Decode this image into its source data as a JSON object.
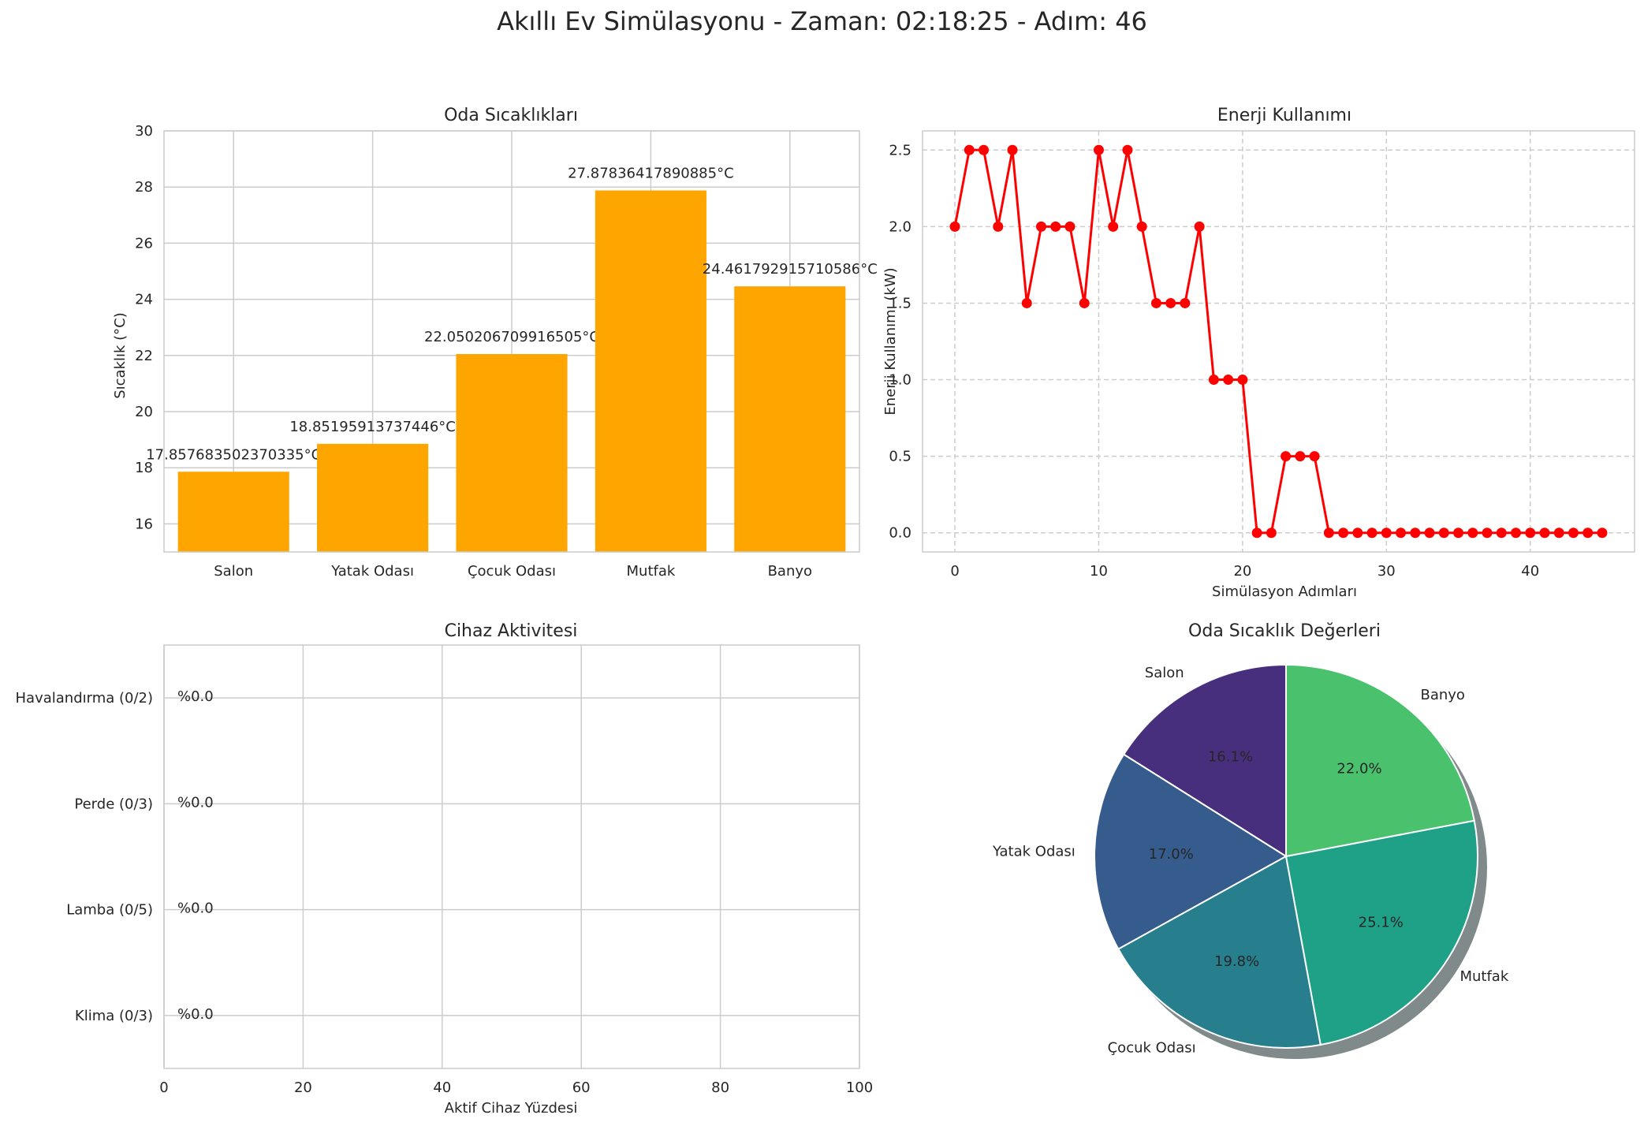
{
  "figure": {
    "title": "Akıllı Ev Simülasyonu - Zaman: 02:18:25 - Adım: 46"
  },
  "chart_data": [
    {
      "type": "bar",
      "title": "Oda Sıcaklıkları",
      "xlabel": "",
      "ylabel": "Sıcaklık (°C)",
      "ylim": [
        15,
        30
      ],
      "yticks": [
        "16",
        "18",
        "20",
        "22",
        "24",
        "26",
        "28",
        "30"
      ],
      "grid": true,
      "bar_color": "#ffa500",
      "categories": [
        "Salon",
        "Yatak Odası",
        "Çocuk Odası",
        "Mutfak",
        "Banyo"
      ],
      "values": [
        17.857683502370335,
        18.85195913737446,
        22.050206709916505,
        27.87836417890885,
        24.461792915710586
      ],
      "data_labels": [
        "17.857683502370335°C",
        "18.85195913737446°C",
        "22.050206709916505°C",
        "27.87836417890885°C",
        "24.461792915710586°C"
      ]
    },
    {
      "type": "line",
      "title": "Enerji Kullanımı",
      "xlabel": "Simülasyon Adımları",
      "ylabel": "Enerji Kullanımı (kW)",
      "xlim": [
        -2.25,
        47.25
      ],
      "ylim": [
        -0.125,
        2.625
      ],
      "xticks": [
        "0",
        "10",
        "20",
        "30",
        "40"
      ],
      "yticks": [
        "0.0",
        "0.5",
        "1.0",
        "1.5",
        "2.0",
        "2.5"
      ],
      "grid": "dashed",
      "line_color": "#ff0000",
      "x": [
        0,
        1,
        2,
        3,
        4,
        5,
        6,
        7,
        8,
        9,
        10,
        11,
        12,
        13,
        14,
        15,
        16,
        17,
        18,
        19,
        20,
        21,
        22,
        23,
        24,
        25,
        26,
        27,
        28,
        29,
        30,
        31,
        32,
        33,
        34,
        35,
        36,
        37,
        38,
        39,
        40,
        41,
        42,
        43,
        44,
        45
      ],
      "y": [
        2.0,
        2.5,
        2.5,
        2.0,
        2.5,
        1.5,
        2.0,
        2.0,
        2.0,
        1.5,
        2.5,
        2.0,
        2.5,
        2.0,
        1.5,
        1.5,
        1.5,
        2.0,
        1.0,
        1.0,
        1.0,
        0.0,
        0.0,
        0.5,
        0.5,
        0.5,
        0.0,
        0.0,
        0.0,
        0.0,
        0.0,
        0.0,
        0.0,
        0.0,
        0.0,
        0.0,
        0.0,
        0.0,
        0.0,
        0.0,
        0.0,
        0.0,
        0.0,
        0.0,
        0.0,
        0.0
      ]
    },
    {
      "type": "bar",
      "orientation": "horizontal",
      "title": "Cihaz Aktivitesi",
      "xlabel": "Aktif Cihaz Yüzdesi",
      "ylabel": "",
      "xlim": [
        0,
        100
      ],
      "xticks": [
        "0",
        "20",
        "40",
        "60",
        "80",
        "100"
      ],
      "grid": true,
      "categories": [
        "Havalandırma (0/2)",
        "Perde (0/3)",
        "Lamba (0/5)",
        "Klima (0/3)"
      ],
      "values": [
        0.0,
        0.0,
        0.0,
        0.0
      ],
      "data_labels": [
        "%0.0",
        "%0.0",
        "%0.0",
        "%0.0"
      ]
    },
    {
      "type": "pie",
      "title": "Oda Sıcaklık Değerleri",
      "shadow": true,
      "start_angle": 90,
      "labels": [
        "Salon",
        "Yatak Odası",
        "Çocuk Odası",
        "Mutfak",
        "Banyo"
      ],
      "values": [
        17.857683502370335,
        18.85195913737446,
        22.050206709916505,
        27.87836417890885,
        24.461792915710586
      ],
      "percent_labels": [
        "16.1%",
        "17.0%",
        "19.8%",
        "25.1%",
        "22.0%"
      ],
      "colors": [
        "#482f7e",
        "#365c8d",
        "#277f8e",
        "#1fa187",
        "#4ac16d"
      ]
    }
  ]
}
